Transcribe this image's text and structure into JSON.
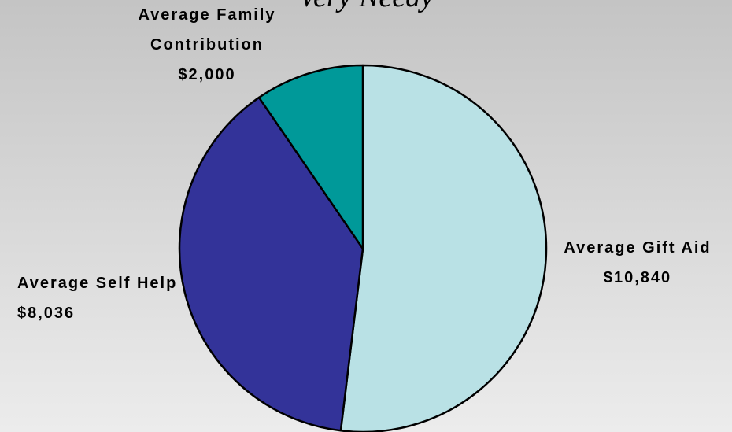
{
  "chart_data": {
    "type": "pie",
    "title": "Very Needy",
    "categories": [
      "Average Gift Aid",
      "Average Self Help",
      "Average Family Contribution"
    ],
    "values": [
      10840,
      8036,
      2000
    ],
    "value_labels": [
      "$10,840",
      "$8,036",
      "$2,000"
    ],
    "colors": [
      "#b9e1e5",
      "#333399",
      "#009999"
    ]
  }
}
